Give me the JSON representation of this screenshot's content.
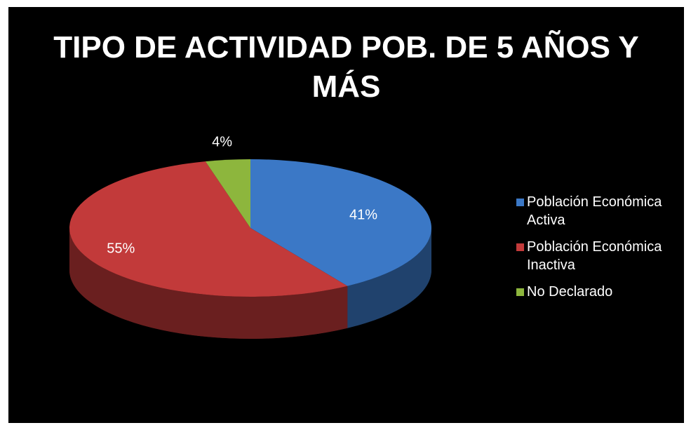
{
  "chart_data": {
    "type": "pie",
    "title": "TIPO DE ACTIVIDAD POB. DE 5 AÑOS Y MÁS",
    "categories": [
      "Población Económica Activa",
      "Población Económica Inactiva",
      "No Declarado"
    ],
    "values": [
      41,
      55,
      4
    ],
    "value_labels": [
      "41%",
      "55%",
      "4%"
    ],
    "colors": [
      "#3b78c6",
      "#c23a3a",
      "#8db63d"
    ],
    "legend": "right"
  }
}
